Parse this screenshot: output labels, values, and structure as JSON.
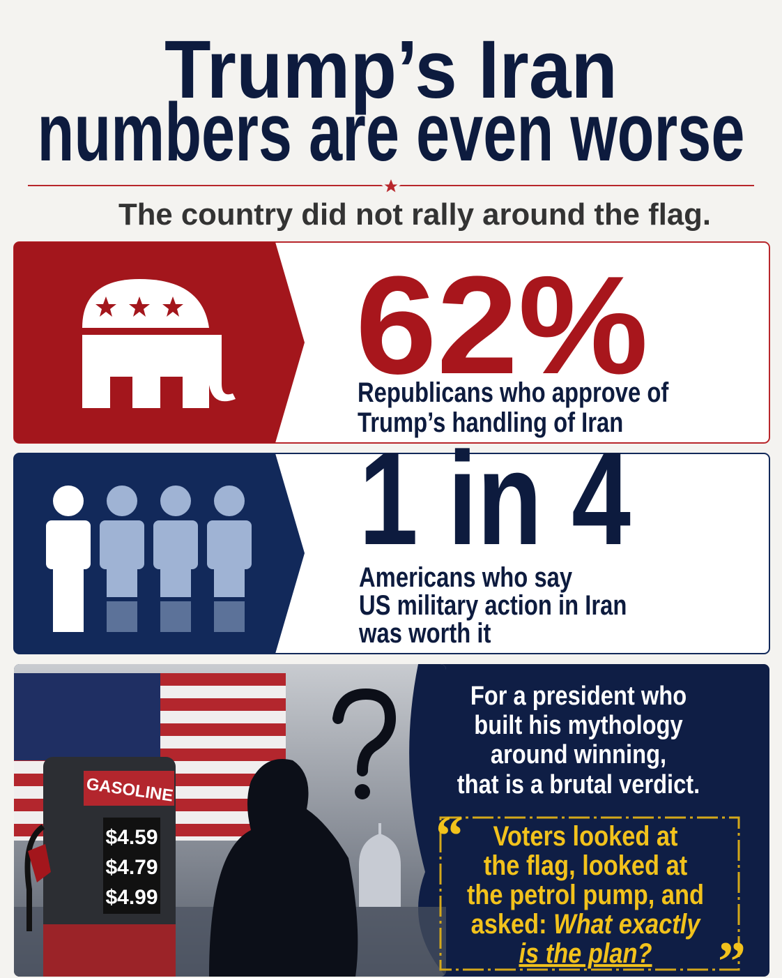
{
  "header": {
    "title_lines": [
      "Trump’s Iran",
      "numbers are even worse"
    ],
    "subtitle": "The country did not rally around the flag."
  },
  "stats": [
    {
      "value": "62%",
      "caption_lines": [
        "Republicans who approve of",
        "Trump’s handling of Iran"
      ]
    },
    {
      "value": "1 in 4",
      "caption_lines": [
        "Americans who say",
        "US military action in Iran",
        "was worth it"
      ]
    }
  ],
  "panel": {
    "pump_label": "GASOLINE",
    "prices": [
      "$4.59",
      "$4.79",
      "$4.99"
    ],
    "statement_lines": [
      "For a president who",
      "built his mythology",
      "around winning,",
      "that is a brutal verdict."
    ],
    "quote": {
      "open_mark": "“",
      "close_mark": "”",
      "lines": [
        "Voters looked at",
        "the flag, looked at",
        "the petrol pump, and",
        "asked: "
      ],
      "question_lines": [
        "What exactly",
        "is the plan?"
      ]
    }
  }
}
